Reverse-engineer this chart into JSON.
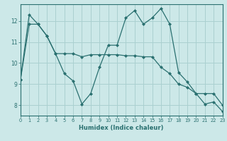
{
  "xlabel": "Humidex (Indice chaleur)",
  "background_color": "#cce8e8",
  "grid_color": "#aad0d0",
  "line_color": "#2a7070",
  "x_values": [
    0,
    1,
    2,
    3,
    4,
    5,
    6,
    7,
    8,
    9,
    10,
    11,
    12,
    13,
    14,
    15,
    16,
    17,
    18,
    19,
    20,
    21,
    22,
    23
  ],
  "line1_y": [
    9.2,
    12.3,
    11.85,
    11.3,
    10.45,
    9.5,
    9.15,
    8.05,
    8.55,
    9.8,
    10.85,
    10.85,
    12.15,
    12.5,
    11.85,
    12.15,
    12.6,
    11.85,
    9.55,
    9.1,
    8.55,
    8.05,
    8.15,
    7.7
  ],
  "line2_y": [
    9.2,
    11.85,
    11.85,
    11.3,
    10.45,
    10.45,
    10.45,
    10.3,
    10.4,
    10.4,
    10.4,
    10.4,
    10.35,
    10.35,
    10.3,
    10.3,
    9.8,
    9.5,
    9.0,
    8.85,
    8.55,
    8.55,
    8.55,
    8.0
  ],
  "xlim": [
    0,
    23
  ],
  "ylim": [
    7.5,
    12.8
  ],
  "yticks": [
    8,
    9,
    10,
    11,
    12
  ],
  "xticks": [
    0,
    1,
    2,
    3,
    4,
    5,
    6,
    7,
    8,
    9,
    10,
    11,
    12,
    13,
    14,
    15,
    16,
    17,
    18,
    19,
    20,
    21,
    22,
    23
  ]
}
